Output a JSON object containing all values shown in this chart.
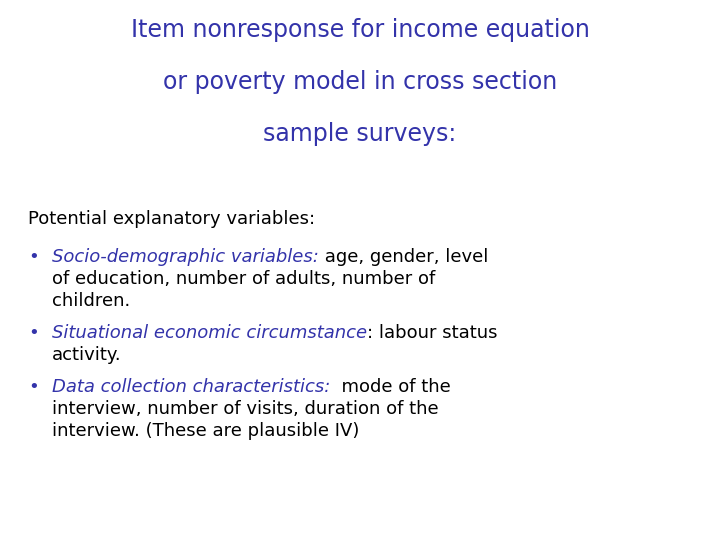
{
  "background_color": "#ffffff",
  "title_lines": [
    "Item nonresponse for income equation",
    "or poverty model in cross section",
    "sample surveys:"
  ],
  "title_color": "#3333aa",
  "title_fontsize": 17,
  "body_color": "#000000",
  "body_fontsize": 13,
  "bullet_color": "#3333aa",
  "section_header": "Potential explanatory variables:",
  "bullets": [
    {
      "italic_part": "Socio-demographic variables:",
      "normal_part": " age, gender, level\nof education, number of adults, number of\nchildren."
    },
    {
      "italic_part": "Situational economic circumstance",
      "normal_part": ": labour status\nactivity."
    },
    {
      "italic_part": "Data collection characteristics:",
      "normal_part": "  mode of the\ninterview, number of visits, duration of the\ninterview. (These are plausible IV)"
    }
  ]
}
